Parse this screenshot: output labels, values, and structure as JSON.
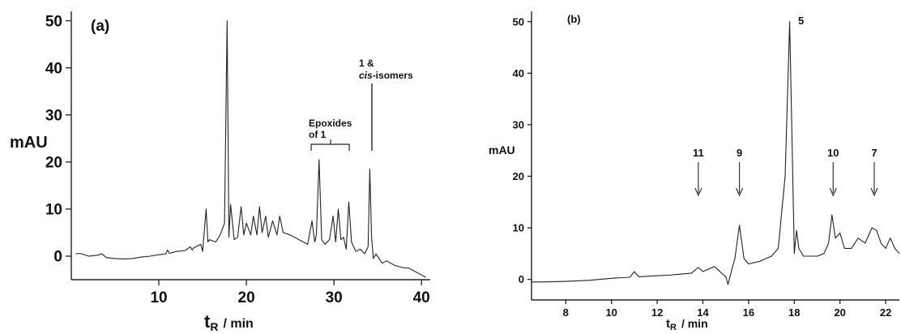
{
  "chart_data": [
    {
      "type": "line",
      "panel_label": "(a)",
      "ylabel": "mAU",
      "xlabel_main": "t",
      "xlabel_sub": "R",
      "xlabel_unit": "/ min",
      "xlim": [
        0,
        41
      ],
      "ylim": [
        -5,
        52
      ],
      "xticks": [
        10,
        20,
        30,
        40
      ],
      "yticks": [
        0,
        10,
        20,
        30,
        40,
        50
      ],
      "grid": false,
      "annotations": {
        "epoxides_line1": "Epoxides",
        "epoxides_line2": "of 1",
        "isomers_line1": "1 &",
        "isomers_cis": "cis",
        "isomers_rest": "-isomers"
      },
      "series": [
        {
          "x": [
            0.5,
            1.0,
            2.0,
            3.0,
            3.5,
            4.0,
            5.0,
            6.0,
            7.0,
            8.0,
            9.0,
            10.0,
            10.8,
            11.0,
            11.2,
            12.0,
            13.0,
            13.6,
            13.8,
            14.0,
            14.8,
            15.0,
            15.4,
            15.6,
            15.8,
            16.5,
            17.0,
            17.5,
            17.8,
            18.0,
            18.2,
            18.6,
            19.0,
            19.4,
            19.7,
            20.0,
            20.5,
            20.8,
            21.2,
            21.5,
            21.8,
            22.2,
            22.5,
            23.0,
            23.5,
            23.8,
            24.2,
            25.0,
            26.0,
            27.0,
            27.5,
            27.8,
            28.0,
            28.3,
            28.6,
            29.0,
            29.5,
            29.9,
            30.2,
            30.5,
            30.8,
            31.1,
            31.4,
            31.7,
            32.0,
            32.5,
            33.0,
            33.5,
            33.9,
            34.1,
            34.3,
            34.5,
            34.8,
            35.5,
            36.0,
            37.0,
            38.0,
            38.5,
            39.0,
            39.5,
            40.0,
            40.5
          ],
          "y": [
            0.5,
            0.6,
            0.0,
            0.2,
            0.5,
            -0.3,
            -0.5,
            -0.6,
            -0.5,
            -0.2,
            0.0,
            0.3,
            0.5,
            1.3,
            0.6,
            1.0,
            1.2,
            2.0,
            1.3,
            1.8,
            2.5,
            1.0,
            10.0,
            3.0,
            3.5,
            3.0,
            4.5,
            7.0,
            50.0,
            4.0,
            11.0,
            3.5,
            4.0,
            10.5,
            4.5,
            7.0,
            4.5,
            8.5,
            4.5,
            10.5,
            5.0,
            8.5,
            4.0,
            7.5,
            4.5,
            8.5,
            5.0,
            4.5,
            3.5,
            2.5,
            7.5,
            3.0,
            4.5,
            20.5,
            3.5,
            2.5,
            3.5,
            8.5,
            3.0,
            10.0,
            3.5,
            4.0,
            1.5,
            11.5,
            3.0,
            1.0,
            1.5,
            0.5,
            2.0,
            18.5,
            4.0,
            -0.5,
            0.5,
            -1.5,
            -1.0,
            -2.0,
            -2.5,
            -2.5,
            -3.0,
            -3.5,
            -4.0,
            -4.5
          ]
        }
      ]
    },
    {
      "type": "line",
      "panel_label": "(b)",
      "ylabel": "mAU",
      "xlabel_main": "t",
      "xlabel_sub": "R",
      "xlabel_unit": "/ min",
      "xlim": [
        6.5,
        22.6
      ],
      "ylim": [
        -4,
        52
      ],
      "xticks": [
        8,
        10,
        12,
        14,
        16,
        18,
        20,
        22
      ],
      "yticks": [
        0,
        10,
        20,
        30,
        40,
        50
      ],
      "grid": false,
      "peak_labels": [
        {
          "text": "11",
          "x": 13.8
        },
        {
          "text": "9",
          "x": 15.6
        },
        {
          "text": "5",
          "x": 17.8
        },
        {
          "text": "10",
          "x": 19.7
        },
        {
          "text": "7",
          "x": 21.5
        }
      ],
      "arrow_labels": [
        "11",
        "9",
        "10",
        "7"
      ],
      "series": [
        {
          "x": [
            6.5,
            7.0,
            8.0,
            9.0,
            9.5,
            10.0,
            10.8,
            11.0,
            11.2,
            12.0,
            12.5,
            13.0,
            13.5,
            13.8,
            14.0,
            14.5,
            15.0,
            15.1,
            15.3,
            15.4,
            15.6,
            15.8,
            16.0,
            16.5,
            17.0,
            17.3,
            17.6,
            17.8,
            18.0,
            18.1,
            18.2,
            18.4,
            18.7,
            19.0,
            19.3,
            19.5,
            19.65,
            19.8,
            20.0,
            20.2,
            20.5,
            20.8,
            21.1,
            21.4,
            21.6,
            21.8,
            22.0,
            22.2,
            22.4,
            22.6
          ],
          "y": [
            -0.5,
            -0.5,
            -0.4,
            -0.2,
            0.0,
            0.2,
            0.4,
            1.5,
            0.5,
            0.7,
            0.8,
            1.0,
            1.2,
            2.3,
            1.5,
            2.5,
            0.5,
            -1.0,
            2.5,
            4.0,
            10.5,
            4.0,
            3.0,
            3.5,
            4.5,
            6.0,
            20.0,
            50.0,
            5.0,
            9.5,
            6.0,
            4.5,
            4.5,
            4.5,
            5.0,
            7.0,
            12.5,
            8.0,
            9.0,
            6.0,
            6.0,
            8.0,
            7.0,
            10.0,
            9.5,
            7.0,
            6.0,
            8.0,
            6.0,
            5.0
          ]
        }
      ]
    }
  ]
}
